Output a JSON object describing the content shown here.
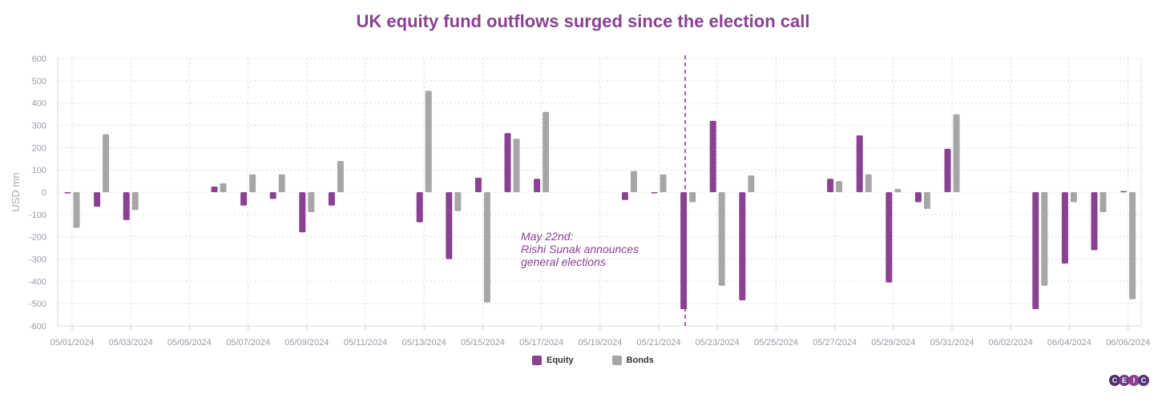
{
  "title": "UK equity fund outflows surged since the election call",
  "chart_data": {
    "type": "bar",
    "ylabel": "USD mn",
    "ylim": [
      -600,
      600
    ],
    "yticks": [
      600,
      500,
      400,
      300,
      200,
      100,
      0,
      -100,
      -200,
      -300,
      -400,
      -500,
      -600
    ],
    "x_tick_labels": [
      "05/01/2024",
      "05/03/2024",
      "05/05/2024",
      "05/07/2024",
      "05/09/2024",
      "05/11/2024",
      "05/13/2024",
      "05/15/2024",
      "05/17/2024",
      "05/19/2024",
      "05/21/2024",
      "05/23/2024",
      "05/25/2024",
      "05/27/2024",
      "05/29/2024",
      "05/31/2024",
      "06/02/2024",
      "06/04/2024",
      "06/06/2024"
    ],
    "categories": [
      "05/01/2024",
      "05/02/2024",
      "05/03/2024",
      "05/06/2024",
      "05/07/2024",
      "05/08/2024",
      "05/09/2024",
      "05/10/2024",
      "05/13/2024",
      "05/14/2024",
      "05/15/2024",
      "05/16/2024",
      "05/17/2024",
      "05/20/2024",
      "05/21/2024",
      "05/22/2024",
      "05/23/2024",
      "05/24/2024",
      "05/27/2024",
      "05/28/2024",
      "05/29/2024",
      "05/30/2024",
      "05/31/2024",
      "06/03/2024",
      "06/04/2024",
      "06/05/2024",
      "06/06/2024"
    ],
    "series": [
      {
        "name": "Equity",
        "color": "#8a4191",
        "values": [
          -5,
          -65,
          -125,
          25,
          -60,
          -30,
          -180,
          -60,
          -135,
          -300,
          65,
          265,
          60,
          -35,
          -5,
          -525,
          320,
          -485,
          60,
          255,
          -405,
          -45,
          195,
          -525,
          -320,
          -260,
          5
        ]
      },
      {
        "name": "Bonds",
        "color": "#a6a6a6",
        "values": [
          -160,
          260,
          -80,
          40,
          80,
          80,
          -90,
          140,
          455,
          -85,
          -495,
          240,
          360,
          95,
          80,
          -45,
          -420,
          75,
          50,
          80,
          15,
          -75,
          350,
          -420,
          -45,
          -90,
          -480
        ]
      }
    ],
    "annotation": {
      "lines": [
        "May 22nd:",
        "Rishi Sunak announces",
        "general elections"
      ],
      "marker_date": "05/22/2024"
    }
  },
  "legend": {
    "equity_label": "Equity",
    "bonds_label": "Bonds"
  },
  "logo": {
    "letters": [
      "C",
      "E",
      "I",
      "C"
    ]
  },
  "colors": {
    "equity": "#8a4191",
    "bonds": "#a6a6a6",
    "grid": "#dcdce4",
    "title": "#8a4191"
  }
}
